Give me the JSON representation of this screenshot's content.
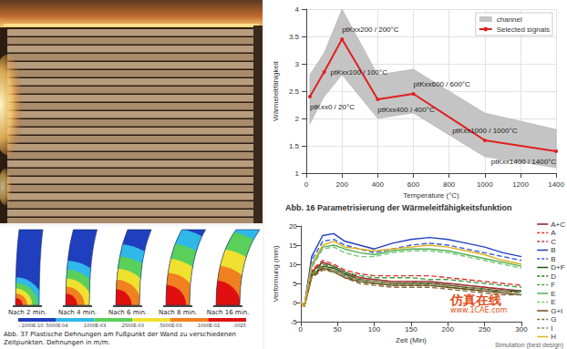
{
  "chart_data": [
    {
      "type": "line",
      "title": "Abb. 16 Parametrisierung der Wärmeleitfähigkeitsfunktion",
      "x_label": "Temperature (°C)",
      "y_label": "Wärmeleitfähigkeit",
      "x": [
        20,
        100,
        200,
        400,
        600,
        1000,
        1400
      ],
      "series": [
        {
          "name": "channel",
          "type": "band",
          "color": "#c4c4c4",
          "lower": [
            1.9,
            2.4,
            2.8,
            2.0,
            2.1,
            1.3,
            1.1
          ],
          "upper": [
            2.8,
            3.2,
            4.0,
            2.8,
            2.9,
            2.1,
            1.8
          ]
        },
        {
          "name": "Selected signals",
          "type": "line",
          "color": "#e02020",
          "marker": "circle",
          "values": [
            2.4,
            2.85,
            3.45,
            2.35,
            2.45,
            1.6,
            1.4
          ],
          "annotations": [
            "ptKxx0 / 20°C",
            "ptKxx100 / 100°C",
            "ptKxx200 / 200°C",
            "ptKxx400 / 400°C",
            "ptKxx600 / 600°C",
            "ptKxx1000 / 1000°C",
            "ptKxx1400 / 1400°C"
          ]
        }
      ],
      "xlim": [
        0,
        1400
      ],
      "xticks": [
        0,
        200,
        400,
        600,
        800,
        1000,
        1200,
        1400
      ],
      "ylim": [
        1,
        4
      ],
      "yticks": [
        1,
        1.5,
        2,
        2.5,
        3,
        3.5,
        4
      ],
      "grid": true,
      "legend": "top-right"
    },
    {
      "type": "line",
      "x_label": "Zeit (Min)",
      "y_label": "Verformung (mm)",
      "annotations": [
        "Simulation (best design)"
      ],
      "x": [
        0,
        5,
        15,
        30,
        45,
        60,
        80,
        100,
        125,
        150,
        175,
        200,
        225,
        250,
        275,
        300
      ],
      "series": [
        {
          "name": "A+C",
          "color": "#8b1a1a",
          "line_style": "solid",
          "values": [
            0,
            -1,
            8,
            10.5,
            9.5,
            8,
            6.5,
            6,
            5.5,
            5.5,
            5.5,
            5,
            4.5,
            4,
            3.5,
            3
          ]
        },
        {
          "name": "A",
          "color": "#e03030",
          "line_style": "dashed",
          "values": [
            0,
            -1,
            8.5,
            11,
            10,
            8.5,
            7.5,
            7,
            7,
            7,
            7,
            6.5,
            6,
            5.5,
            5,
            4.5
          ]
        },
        {
          "name": "C",
          "color": "#b04848",
          "line_style": "dashed",
          "values": [
            0,
            -1,
            7.5,
            10,
            9,
            7.5,
            6.5,
            6,
            5.5,
            5.5,
            5,
            5,
            4.5,
            4,
            3.5,
            3
          ]
        },
        {
          "name": "B",
          "color": "#2040c0",
          "line_style": "solid",
          "values": [
            0,
            -1,
            12,
            17.5,
            18,
            16,
            15,
            14,
            15.5,
            16.5,
            17,
            16.5,
            15.5,
            14.5,
            13,
            12
          ]
        },
        {
          "name": "B",
          "color": "#3a5ae0",
          "line_style": "dashed",
          "values": [
            0,
            -1,
            11,
            16,
            16.5,
            15,
            14,
            13,
            14,
            15,
            15.5,
            15,
            14,
            13,
            12,
            11
          ]
        },
        {
          "name": "D+F",
          "color": "#1a5a1a",
          "line_style": "solid",
          "values": [
            0,
            -1,
            7,
            9.5,
            9,
            7.5,
            6,
            5.5,
            5,
            5,
            5,
            4.5,
            4,
            3.5,
            3,
            3
          ]
        },
        {
          "name": "D",
          "color": "#2a7a2a",
          "line_style": "dashed",
          "values": [
            0,
            -1,
            6.5,
            9,
            8.5,
            7,
            5.5,
            5,
            4.5,
            4.5,
            4.5,
            4,
            3.5,
            3,
            3,
            2.5
          ]
        },
        {
          "name": "F",
          "color": "#40a040",
          "line_style": "dashed",
          "values": [
            0,
            -1,
            7.5,
            10,
            9.5,
            8,
            7,
            6.5,
            6.5,
            6.5,
            6,
            6,
            5.5,
            5,
            4.5,
            4
          ]
        },
        {
          "name": "E",
          "color": "#50b050",
          "line_style": "solid",
          "values": [
            0,
            -1,
            9.5,
            14.5,
            15,
            14,
            13,
            12.5,
            13.5,
            14,
            14,
            13.5,
            12.5,
            11.5,
            10.5,
            9.5
          ]
        },
        {
          "name": "E",
          "color": "#78c878",
          "line_style": "dashed",
          "values": [
            0,
            -1,
            9,
            14,
            14.5,
            13,
            12,
            12,
            13,
            13.5,
            13.5,
            13,
            12,
            11,
            10,
            9
          ]
        },
        {
          "name": "G+I",
          "color": "#6b4a1a",
          "line_style": "solid",
          "values": [
            0,
            -1,
            7,
            9,
            8,
            6.5,
            5.5,
            5,
            4.5,
            4.5,
            4.5,
            4,
            3.5,
            3,
            2.5,
            2
          ]
        },
        {
          "name": "G",
          "color": "#8a6a3a",
          "line_style": "dashed",
          "values": [
            0,
            -1,
            6.5,
            8.5,
            8,
            6.5,
            5,
            4.5,
            4,
            4,
            4,
            3.5,
            3,
            2.5,
            2,
            2
          ]
        },
        {
          "name": "I",
          "color": "#a08050",
          "line_style": "dashed",
          "values": [
            0,
            -1,
            7,
            9.5,
            8.5,
            7,
            6,
            5.5,
            5,
            5,
            5,
            4.5,
            4,
            3.5,
            3,
            2.5
          ]
        },
        {
          "name": "H",
          "color": "#e0b020",
          "line_style": "solid",
          "values": [
            0,
            -1,
            10,
            15,
            16,
            14.5,
            14,
            13.5,
            14,
            14.5,
            15,
            14.5,
            13.5,
            12.5,
            11,
            10
          ]
        }
      ],
      "xlim": [
        0,
        300
      ],
      "xticks": [
        0,
        50,
        100,
        150,
        200,
        250,
        300
      ],
      "ylim": [
        -5,
        20
      ],
      "yticks": [
        -5,
        0,
        5,
        10,
        15,
        20
      ],
      "grid": false,
      "legend": "right"
    }
  ],
  "contour_figure": {
    "panels": [
      "Nach 2 min.",
      "Nach 4 min.",
      "Nach 6 min.",
      "Nach 8 min.",
      "Nach 16 min."
    ],
    "colorbar_labels": [
      "-.1000E-10",
      ".5000E-04",
      ".1000E-03",
      ".2500E-03",
      ".5000E-03",
      ".1000E-02",
      ".0025"
    ],
    "caption": [
      "Abb. 37 Plastische Dehnungen am Fußpunkt der Wand zu verschiedenen",
      "Zeitpunkten. Dehnungen in m/m."
    ]
  },
  "watermark": {
    "text": "仿真在线",
    "url": "www.1CAE.com"
  }
}
